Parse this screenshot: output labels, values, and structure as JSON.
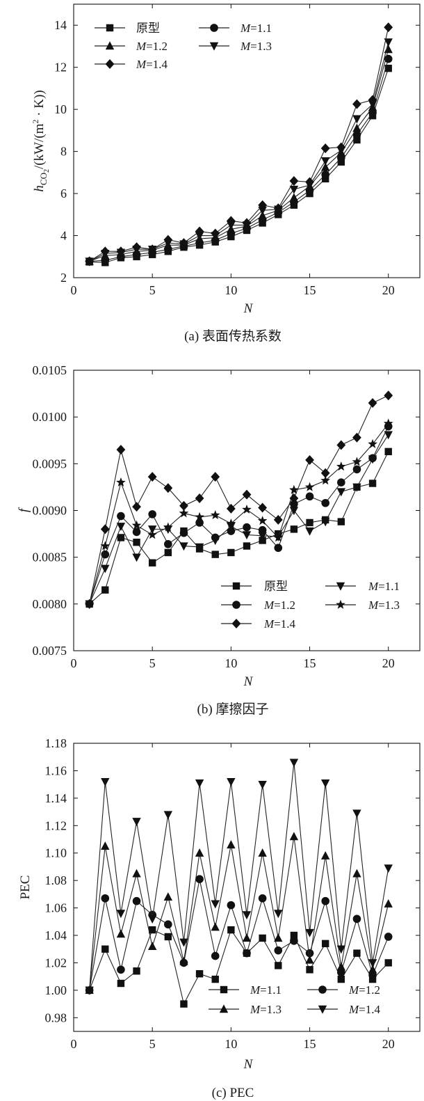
{
  "chart_data": [
    {
      "type": "line",
      "caption": "(a) 表面传热系数",
      "xlabel": "N",
      "ylabel_parts": {
        "h": "h",
        "sub": "CO",
        "sub2": "2",
        "unit_a": "/(kW/(m",
        "sup": "2",
        "unit_b": " · K))"
      },
      "xlim": [
        0,
        22
      ],
      "ylim": [
        2,
        15
      ],
      "xticks": [
        0,
        5,
        10,
        15,
        20
      ],
      "yticks": [
        2,
        4,
        6,
        8,
        10,
        12,
        14
      ],
      "legend_position": "top-left",
      "x": [
        1,
        2,
        3,
        4,
        5,
        6,
        7,
        8,
        9,
        10,
        11,
        12,
        13,
        14,
        15,
        16,
        17,
        18,
        19,
        20
      ],
      "series": [
        {
          "name": "原型",
          "label_parts": [
            "原型"
          ],
          "marker": "square",
          "values": [
            2.75,
            2.72,
            2.95,
            3.0,
            3.1,
            3.25,
            3.45,
            3.55,
            3.7,
            3.95,
            4.25,
            4.6,
            5.0,
            5.45,
            6.0,
            6.7,
            7.5,
            8.55,
            9.7,
            11.95
          ]
        },
        {
          "name": "M=1.1",
          "label_parts": [
            "M",
            "=1.1"
          ],
          "marker": "circle",
          "values": [
            2.78,
            2.82,
            3.0,
            3.1,
            3.2,
            3.35,
            3.5,
            3.65,
            3.78,
            4.1,
            4.35,
            4.75,
            5.1,
            5.6,
            6.15,
            6.9,
            7.7,
            8.8,
            9.85,
            12.4
          ]
        },
        {
          "name": "M=1.2",
          "label_parts": [
            "M",
            "=1.2"
          ],
          "marker": "triangle-up",
          "values": [
            2.78,
            3.05,
            3.1,
            3.25,
            3.3,
            3.55,
            3.55,
            3.85,
            3.9,
            4.3,
            4.45,
            4.95,
            5.2,
            5.8,
            6.35,
            7.25,
            7.95,
            9.1,
            10.1,
            12.85
          ]
        },
        {
          "name": "M=1.3",
          "label_parts": [
            "M",
            "=1.3"
          ],
          "marker": "triangle-down",
          "values": [
            2.78,
            3.15,
            3.2,
            3.35,
            3.35,
            3.65,
            3.6,
            4.0,
            4.0,
            4.5,
            4.5,
            5.2,
            5.25,
            6.2,
            6.4,
            7.55,
            8.05,
            9.55,
            10.25,
            13.2
          ]
        },
        {
          "name": "M=1.4",
          "label_parts": [
            "M",
            "=1.4"
          ],
          "marker": "diamond",
          "values": [
            2.78,
            3.25,
            3.25,
            3.45,
            3.35,
            3.8,
            3.65,
            4.2,
            4.1,
            4.7,
            4.6,
            5.45,
            5.3,
            6.6,
            6.55,
            8.15,
            8.2,
            10.25,
            10.45,
            13.9
          ]
        }
      ]
    },
    {
      "type": "line",
      "caption": "(b) 摩擦因子",
      "xlabel": "N",
      "ylabel": "f",
      "xlim": [
        0,
        22
      ],
      "ylim": [
        0.0075,
        0.0105
      ],
      "xticks": [
        0,
        5,
        10,
        15,
        20
      ],
      "yticks": [
        0.0075,
        0.008,
        0.0085,
        0.009,
        0.0095,
        0.01,
        0.0105
      ],
      "ytick_labels": [
        "0.0075",
        "0.0080",
        "0.0085",
        "0.0090",
        "0.0095",
        "0.0100",
        "0.0105"
      ],
      "legend_position": "bottom-right",
      "x": [
        1,
        2,
        3,
        4,
        5,
        6,
        7,
        8,
        9,
        10,
        11,
        12,
        13,
        14,
        15,
        16,
        17,
        18,
        19,
        20
      ],
      "series": [
        {
          "name": "原型",
          "label_parts": [
            "原型"
          ],
          "marker": "square",
          "values": [
            0.008,
            0.00815,
            0.00871,
            0.00866,
            0.00844,
            0.00855,
            0.00878,
            0.00859,
            0.00853,
            0.00855,
            0.00862,
            0.00868,
            0.00875,
            0.0088,
            0.00887,
            0.0089,
            0.00888,
            0.00925,
            0.00929,
            0.00963
          ]
        },
        {
          "name": "M=1.1",
          "label_parts": [
            "M",
            "=1.1"
          ],
          "marker": "triangle-down",
          "values": [
            0.008,
            0.00838,
            0.00883,
            0.0085,
            0.0088,
            0.0088,
            0.00862,
            0.00861,
            0.00868,
            0.00883,
            0.00874,
            0.00873,
            0.00872,
            0.009,
            0.00878,
            0.00888,
            0.0092,
            0.00925,
            0.00955,
            0.00981
          ]
        },
        {
          "name": "M=1.2",
          "label_parts": [
            "M",
            "=1.2"
          ],
          "marker": "circle",
          "values": [
            0.008,
            0.00853,
            0.00894,
            0.00877,
            0.00896,
            0.00864,
            0.00876,
            0.00887,
            0.00871,
            0.00878,
            0.00882,
            0.00879,
            0.0086,
            0.00907,
            0.00915,
            0.00908,
            0.0093,
            0.00944,
            0.00956,
            0.0099
          ]
        },
        {
          "name": "M=1.3",
          "label_parts": [
            "M",
            "=1.3"
          ],
          "marker": "star",
          "values": [
            0.008,
            0.00862,
            0.0093,
            0.00884,
            0.00874,
            0.00882,
            0.00897,
            0.00893,
            0.00895,
            0.00886,
            0.00901,
            0.00889,
            0.00871,
            0.00922,
            0.00925,
            0.00932,
            0.00947,
            0.00952,
            0.00971,
            0.00993
          ]
        },
        {
          "name": "M=1.4",
          "label_parts": [
            "M",
            "=1.4"
          ],
          "marker": "diamond",
          "values": [
            0.008,
            0.0088,
            0.00965,
            0.00904,
            0.00936,
            0.00924,
            0.00905,
            0.00913,
            0.00936,
            0.00902,
            0.00917,
            0.00903,
            0.0089,
            0.00913,
            0.00954,
            0.0094,
            0.0097,
            0.00978,
            0.01015,
            0.01023
          ]
        }
      ]
    },
    {
      "type": "line",
      "caption": "(c) PEC",
      "xlabel": "N",
      "ylabel": "PEC",
      "xlim": [
        0,
        22
      ],
      "ylim": [
        0.97,
        1.18
      ],
      "xticks": [
        0,
        5,
        10,
        15,
        20
      ],
      "yticks": [
        0.98,
        1.0,
        1.02,
        1.04,
        1.06,
        1.08,
        1.1,
        1.12,
        1.14,
        1.16,
        1.18
      ],
      "ytick_labels": [
        "0.98",
        "1.00",
        "1.02",
        "1.04",
        "1.06",
        "1.08",
        "1.10",
        "1.12",
        "1.14",
        "1.16",
        "1.18"
      ],
      "legend_position": "bottom-right",
      "x": [
        1,
        2,
        3,
        4,
        5,
        6,
        7,
        8,
        9,
        10,
        11,
        12,
        13,
        14,
        15,
        16,
        17,
        18,
        19,
        20
      ],
      "series": [
        {
          "name": "M=1.1",
          "label_parts": [
            "M",
            "=1.1"
          ],
          "marker": "square",
          "values": [
            1.0,
            1.03,
            1.005,
            1.014,
            1.044,
            1.039,
            0.99,
            1.012,
            1.008,
            1.044,
            1.027,
            1.038,
            1.018,
            1.04,
            1.015,
            1.034,
            1.008,
            1.027,
            1.008,
            1.02
          ]
        },
        {
          "name": "M=1.2",
          "label_parts": [
            "M",
            "=1.2"
          ],
          "marker": "circle",
          "values": [
            1.0,
            1.067,
            1.015,
            1.065,
            1.055,
            1.048,
            1.02,
            1.081,
            1.025,
            1.062,
            1.027,
            1.067,
            1.029,
            1.036,
            1.027,
            1.065,
            1.013,
            1.052,
            1.011,
            1.039
          ]
        },
        {
          "name": "M=1.3",
          "label_parts": [
            "M",
            "=1.3"
          ],
          "marker": "triangle-up",
          "values": [
            1.0,
            1.105,
            1.041,
            1.085,
            1.032,
            1.068,
            1.021,
            1.1,
            1.046,
            1.106,
            1.038,
            1.1,
            1.038,
            1.112,
            1.022,
            1.098,
            1.017,
            1.085,
            1.015,
            1.063
          ]
        },
        {
          "name": "M=1.4",
          "label_parts": [
            "M",
            "=1.4"
          ],
          "marker": "triangle-down",
          "values": [
            1.0,
            1.152,
            1.056,
            1.123,
            1.052,
            1.128,
            1.035,
            1.151,
            1.063,
            1.152,
            1.055,
            1.15,
            1.056,
            1.166,
            1.042,
            1.151,
            1.03,
            1.129,
            1.02,
            1.089
          ]
        }
      ]
    }
  ]
}
